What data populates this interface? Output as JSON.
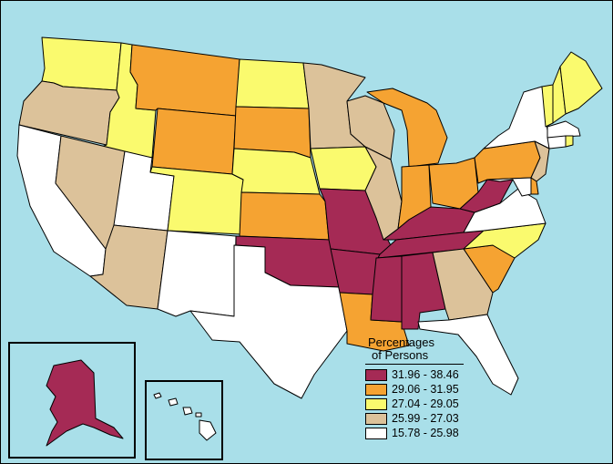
{
  "legend": {
    "title_line1": "Percentages",
    "title_line2": "of Persons",
    "classes": [
      {
        "range": "31.96 - 38.46",
        "color": "#a52a55"
      },
      {
        "range": "29.06 - 31.95",
        "color": "#f5a332"
      },
      {
        "range": "27.04 - 29.05",
        "color": "#fafa6e"
      },
      {
        "range": "25.99 - 27.03",
        "color": "#dcc29a"
      },
      {
        "range": "15.78 - 25.98",
        "color": "#ffffff"
      }
    ]
  },
  "colors": {
    "water": "#a9dfe9",
    "outline": "#000000"
  },
  "states": [
    {
      "name": "Washington",
      "class": 2
    },
    {
      "name": "Oregon",
      "class": 3
    },
    {
      "name": "California",
      "class": 4
    },
    {
      "name": "Idaho",
      "class": 2
    },
    {
      "name": "Nevada",
      "class": 3
    },
    {
      "name": "Utah",
      "class": 4
    },
    {
      "name": "Arizona",
      "class": 3
    },
    {
      "name": "Montana",
      "class": 1
    },
    {
      "name": "Wyoming",
      "class": 1
    },
    {
      "name": "Colorado",
      "class": 2
    },
    {
      "name": "New Mexico",
      "class": 4
    },
    {
      "name": "North Dakota",
      "class": 2
    },
    {
      "name": "South Dakota",
      "class": 1
    },
    {
      "name": "Nebraska",
      "class": 2
    },
    {
      "name": "Kansas",
      "class": 1
    },
    {
      "name": "Oklahoma",
      "class": 0
    },
    {
      "name": "Texas",
      "class": 4
    },
    {
      "name": "Minnesota",
      "class": 3
    },
    {
      "name": "Iowa",
      "class": 2
    },
    {
      "name": "Missouri",
      "class": 0
    },
    {
      "name": "Arkansas",
      "class": 0
    },
    {
      "name": "Louisiana",
      "class": 1
    },
    {
      "name": "Wisconsin",
      "class": 3
    },
    {
      "name": "Illinois",
      "class": 3
    },
    {
      "name": "Michigan",
      "class": 1
    },
    {
      "name": "Indiana",
      "class": 1
    },
    {
      "name": "Ohio",
      "class": 1
    },
    {
      "name": "Kentucky",
      "class": 0
    },
    {
      "name": "Tennessee",
      "class": 0
    },
    {
      "name": "Mississippi",
      "class": 0
    },
    {
      "name": "Alabama",
      "class": 0
    },
    {
      "name": "Georgia",
      "class": 3
    },
    {
      "name": "Florida",
      "class": 4
    },
    {
      "name": "South Carolina",
      "class": 1
    },
    {
      "name": "North Carolina",
      "class": 2
    },
    {
      "name": "Virginia",
      "class": 4
    },
    {
      "name": "West Virginia",
      "class": 0
    },
    {
      "name": "Pennsylvania",
      "class": 1
    },
    {
      "name": "New York",
      "class": 4
    },
    {
      "name": "New Jersey",
      "class": 3
    },
    {
      "name": "Delaware",
      "class": 1
    },
    {
      "name": "Maryland",
      "class": 4
    },
    {
      "name": "Vermont",
      "class": 2
    },
    {
      "name": "New Hampshire",
      "class": 2
    },
    {
      "name": "Maine",
      "class": 2
    },
    {
      "name": "Massachusetts",
      "class": 4
    },
    {
      "name": "Connecticut",
      "class": 4
    },
    {
      "name": "Rhode Island",
      "class": 2
    },
    {
      "name": "Alaska",
      "class": 0
    },
    {
      "name": "Hawaii",
      "class": 4
    }
  ]
}
